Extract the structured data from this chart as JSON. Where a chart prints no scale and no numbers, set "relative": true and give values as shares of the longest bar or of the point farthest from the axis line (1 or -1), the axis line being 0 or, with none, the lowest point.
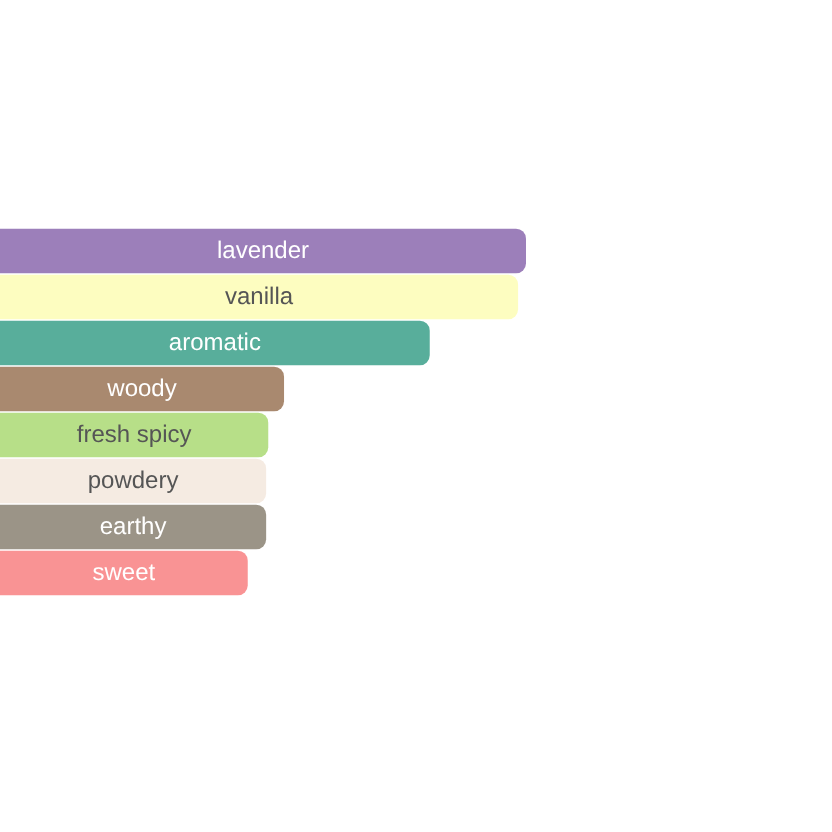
{
  "chart_data": {
    "type": "bar",
    "orientation": "horizontal",
    "relative": true,
    "categories": [
      "lavender",
      "vanilla",
      "aromatic",
      "woody",
      "fresh spicy",
      "powdery",
      "earthy",
      "sweet"
    ],
    "values": [
      1,
      0.985,
      0.817,
      0.54,
      0.51,
      0.506,
      0.506,
      0.471
    ],
    "colors": [
      "#9c7fba",
      "#fdfdc0",
      "#58ae9b",
      "#a9896f",
      "#b7df88",
      "#f5ebe2",
      "#9b9487",
      "#f99394"
    ],
    "legend": false
  }
}
